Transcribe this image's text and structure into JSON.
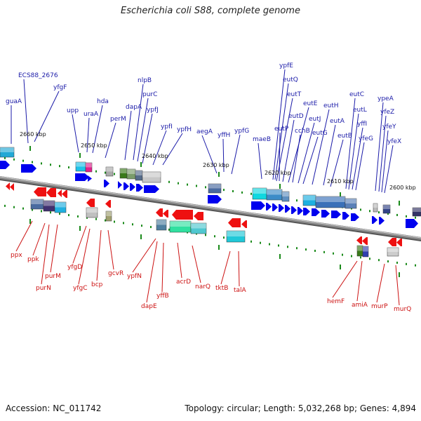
{
  "title": "Escherichia coli S88, complete genome",
  "footer": {
    "accession": "Accession: NC_011742",
    "summary": "Topology: circular; Length: 5,032,268 bp; Genes: 4,894"
  },
  "colors": {
    "forward_label": "#1a1aa8",
    "reverse_label": "#cc1111",
    "forward_arrow": "#0000ee",
    "reverse_arrow": "#ee1111",
    "tick": "#1a8a1a",
    "backbone": "#8a8a8a"
  },
  "scale_labels": [
    "2660 kbp",
    "2650 kbp",
    "2640 kbp",
    "2630 kbp",
    "2620 kbp",
    "2610 kbp",
    "2600 kbp"
  ],
  "forward_genes": [
    "guaA",
    "ECS88_2676",
    "yfgF",
    "upp",
    "uraA",
    "hda",
    "perM",
    "dapA",
    "nlpB",
    "purC",
    "ypfJ",
    "ypfI",
    "ypfH",
    "aegA",
    "yffH",
    "ypfG",
    "maeB",
    "ypfE",
    "eutQ",
    "eutT",
    "eutP",
    "eutD",
    "eutE",
    "cchB",
    "eutJ",
    "eutG",
    "eutH",
    "eutA",
    "eutB",
    "eutC",
    "eutL",
    "yffI",
    "yfeG",
    "ypeA",
    "yfeZ",
    "yfeY",
    "yfeX"
  ],
  "reverse_genes": [
    "ppx",
    "ppk",
    "purN",
    "purM",
    "yfgD",
    "yfgC",
    "bcp",
    "gcvR",
    "ypfN",
    "dapE",
    "yffB",
    "acrD",
    "narQ",
    "tktB",
    "talA",
    "hemF",
    "amiA",
    "murP",
    "murQ"
  ]
}
